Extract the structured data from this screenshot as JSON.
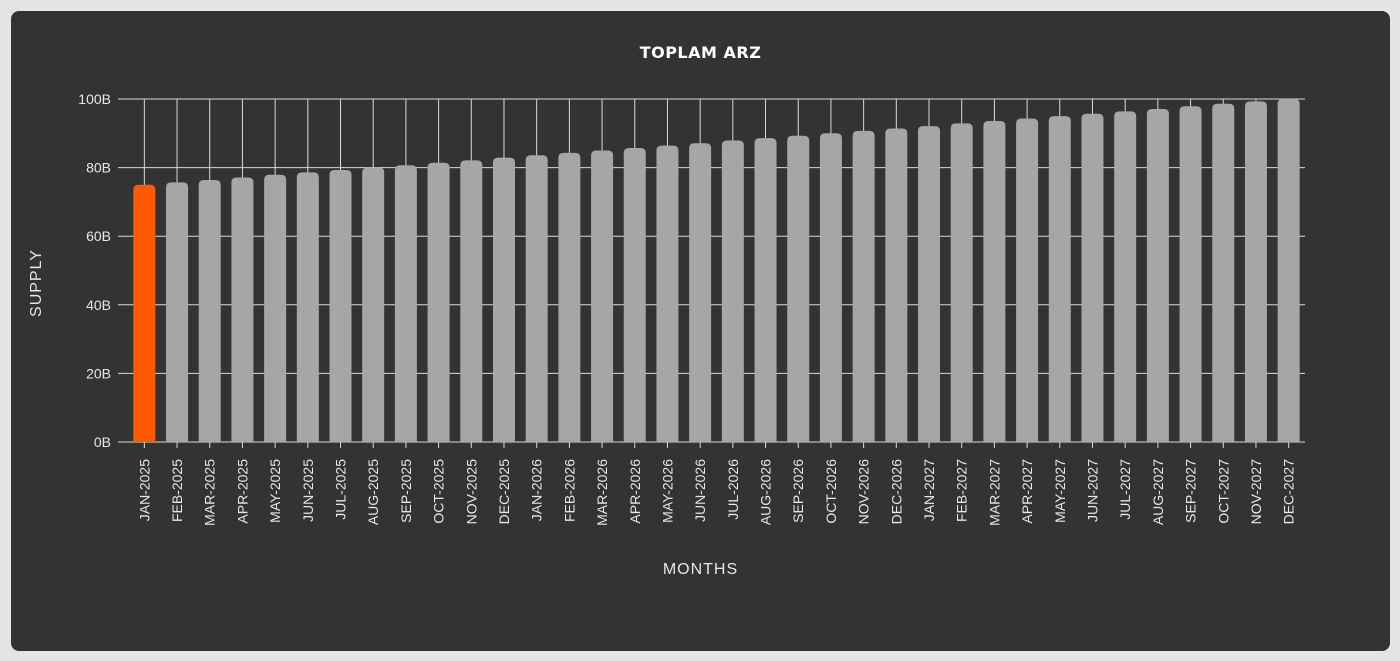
{
  "colors": {
    "background": "#333333",
    "highlight": "#ff5a00",
    "bar": "#a6a6a6",
    "grid": "#d9d9d9",
    "text": "#e6e6e6"
  },
  "chart_data": {
    "type": "bar",
    "title": "TOPLAM ARZ",
    "xlabel": "MONTHS",
    "ylabel": "SUPPLY",
    "ylim": [
      0,
      100
    ],
    "y_unit": "billions",
    "y_ticks": [
      0,
      20,
      40,
      60,
      80,
      100
    ],
    "y_tick_labels": [
      "0B",
      "20B",
      "40B",
      "60B",
      "80B",
      "100B"
    ],
    "grid": true,
    "legend": "none",
    "highlight_index": 0,
    "categories": [
      "JAN-2025",
      "FEB-2025",
      "MAR-2025",
      "APR-2025",
      "MAY-2025",
      "JUN-2025",
      "JUL-2025",
      "AUG-2025",
      "SEP-2025",
      "OCT-2025",
      "NOV-2025",
      "DEC-2025",
      "JAN-2026",
      "FEB-2026",
      "MAR-2026",
      "APR-2026",
      "MAY-2026",
      "JUN-2026",
      "JUL-2026",
      "AUG-2026",
      "SEP-2026",
      "OCT-2026",
      "NOV-2026",
      "DEC-2026",
      "JAN-2027",
      "FEB-2027",
      "MAR-2027",
      "APR-2027",
      "MAY-2027",
      "JUN-2027",
      "JUL-2027",
      "AUG-2027",
      "SEP-2027",
      "OCT-2027",
      "NOV-2027",
      "DEC-2027"
    ],
    "values": [
      75.0,
      75.7,
      76.4,
      77.1,
      77.9,
      78.6,
      79.3,
      80.0,
      80.7,
      81.4,
      82.1,
      82.9,
      83.6,
      84.3,
      85.0,
      85.7,
      86.4,
      87.1,
      87.9,
      88.6,
      89.3,
      90.0,
      90.7,
      91.4,
      92.1,
      92.9,
      93.6,
      94.3,
      95.0,
      95.7,
      96.4,
      97.1,
      97.9,
      98.6,
      99.3,
      100.0
    ]
  }
}
